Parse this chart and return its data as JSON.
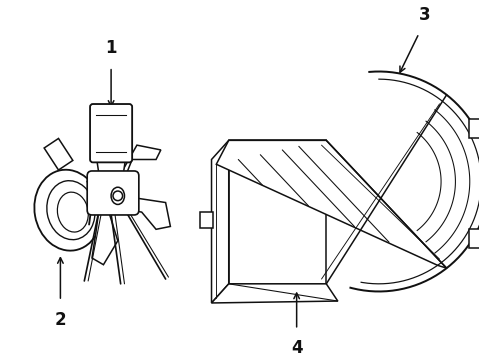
{
  "background_color": "#ffffff",
  "line_color": "#111111",
  "line_width": 1.1,
  "fig_width": 4.9,
  "fig_height": 3.6,
  "dpi": 100,
  "label_fontsize": 12,
  "label_fontweight": "bold"
}
